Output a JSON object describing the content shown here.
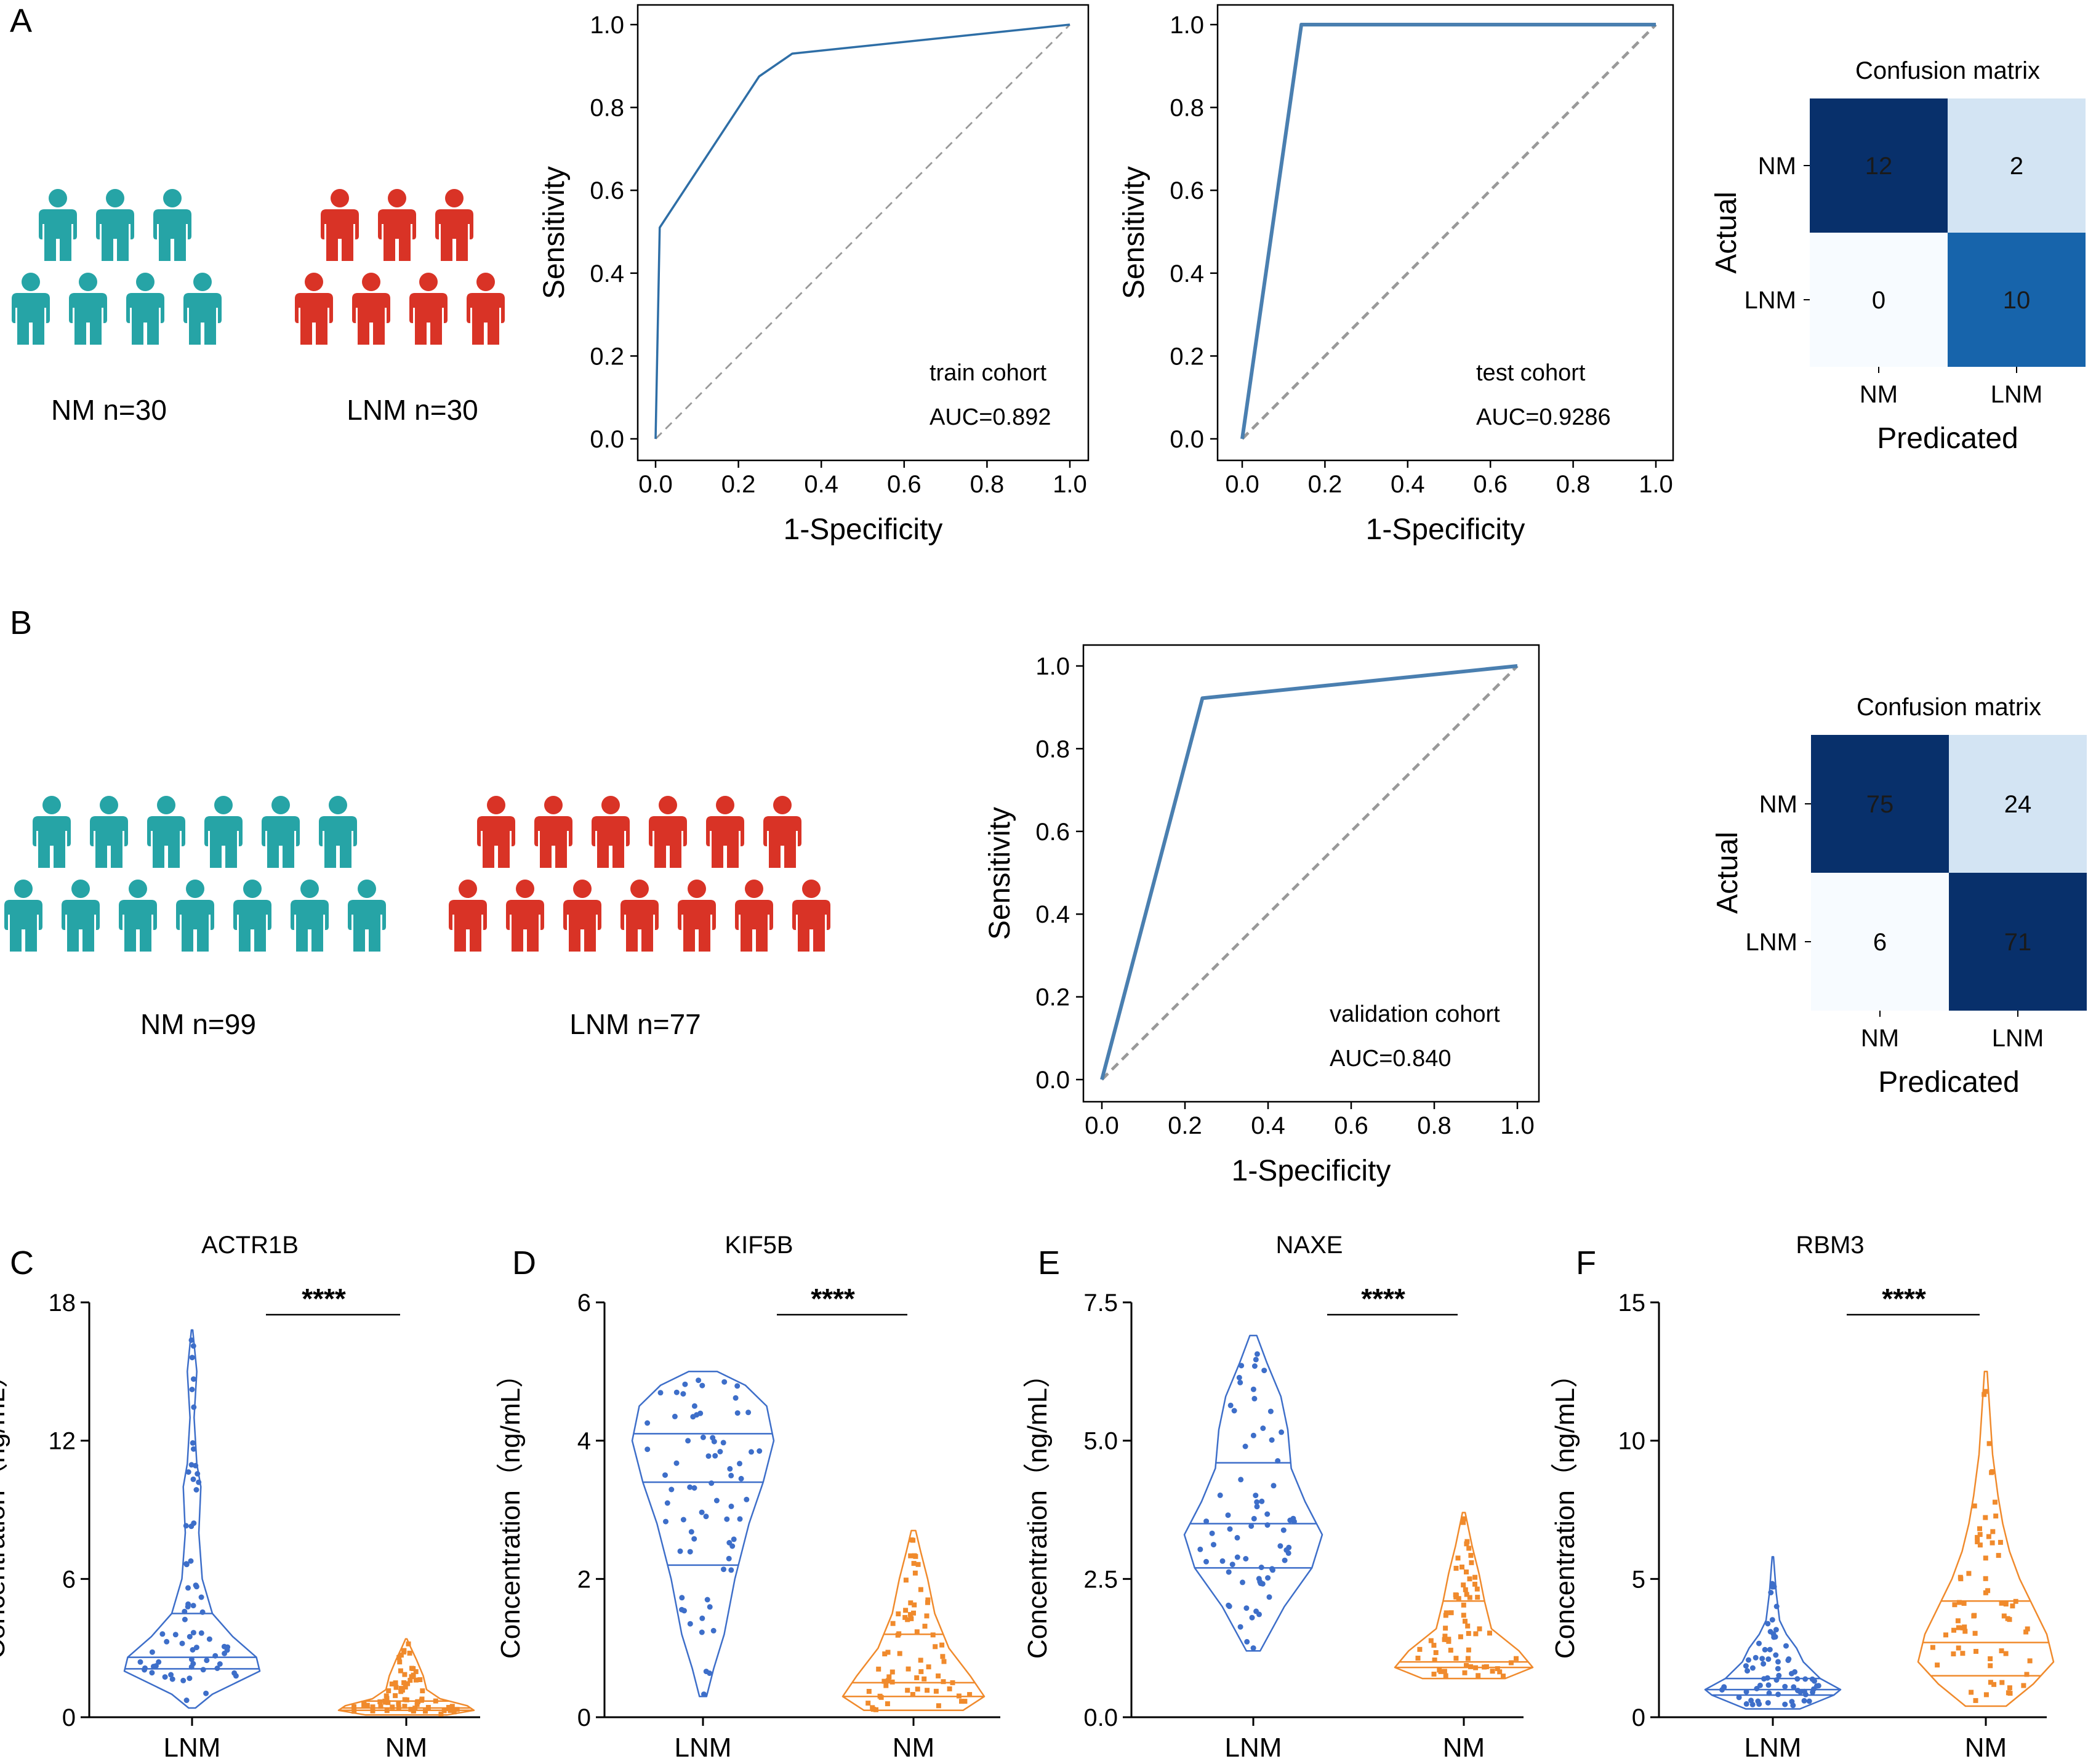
{
  "colors": {
    "teal": "#26a4a6",
    "red": "#d93326",
    "roc_line": "#2e6ea6",
    "roc_line_b": "#4a7fb0",
    "diagonal": "#999999",
    "violin_blue": "#3d6ec9",
    "violin_orange": "#f08a2c",
    "cm_dark": "#08306b",
    "cm_mid": "#1764ab",
    "cm_light": "#d3e4f3",
    "cm_lightest": "#f7fbff"
  },
  "panel_labels": {
    "a": "A",
    "b": "B",
    "c": "C",
    "d": "D",
    "e": "E",
    "f": "F"
  },
  "cohorts": {
    "a": {
      "nm": "NM  n=30",
      "lnm": "LNM  n=30"
    },
    "b": {
      "nm": "NM  n=99",
      "lnm": "LNM  n=77"
    }
  },
  "chart_data": [
    {
      "id": "roc_train",
      "type": "line",
      "title": "",
      "xlabel": "1-Specificity",
      "ylabel": "Sensitivity",
      "xlim": [
        0,
        1
      ],
      "ylim": [
        0,
        1
      ],
      "ticks": [
        "0.0",
        "0.2",
        "0.4",
        "0.6",
        "0.8",
        "1.0"
      ],
      "x": [
        0.0,
        0.01,
        0.25,
        0.33,
        1.0
      ],
      "y": [
        0.0,
        0.51,
        0.875,
        0.93,
        1.0
      ],
      "annotation": [
        "train cohort",
        "AUC=0.892"
      ]
    },
    {
      "id": "roc_test",
      "type": "line",
      "title": "",
      "xlabel": "1-Specificity",
      "ylabel": "Sensitivity",
      "xlim": [
        0,
        1
      ],
      "ylim": [
        0,
        1
      ],
      "ticks": [
        "0.0",
        "0.2",
        "0.4",
        "0.6",
        "0.8",
        "1.0"
      ],
      "x": [
        0.0,
        0.143,
        1.0
      ],
      "y": [
        0.0,
        1.0,
        1.0
      ],
      "annotation": [
        "test cohort",
        "AUC=0.9286"
      ]
    },
    {
      "id": "roc_validation",
      "type": "line",
      "title": "",
      "xlabel": "1-Specificity",
      "ylabel": "Sensitivity",
      "xlim": [
        0,
        1
      ],
      "ylim": [
        0,
        1
      ],
      "ticks": [
        "0.0",
        "0.2",
        "0.4",
        "0.6",
        "0.8",
        "1.0"
      ],
      "x": [
        0.0,
        0.242,
        1.0
      ],
      "y": [
        0.0,
        0.922,
        1.0
      ],
      "annotation": [
        "validation cohort",
        "AUC=0.840"
      ]
    },
    {
      "id": "cm_a",
      "type": "heatmap",
      "title": "Confusion matrix",
      "xlabel": "Predicated",
      "ylabel": "Actual",
      "labels": [
        "NM",
        "LNM"
      ],
      "values": [
        [
          12,
          2
        ],
        [
          0,
          10
        ]
      ]
    },
    {
      "id": "cm_b",
      "type": "heatmap",
      "title": "Confusion matrix",
      "xlabel": "Predicated",
      "ylabel": "Actual",
      "labels": [
        "NM",
        "LNM"
      ],
      "values": [
        [
          75,
          24
        ],
        [
          6,
          71
        ]
      ]
    },
    {
      "id": "violin_actr1b",
      "type": "violin",
      "title": "ACTR1B",
      "ylabel": "Concentration（ng/mL）",
      "categories": [
        "LNM",
        "NM"
      ],
      "ylim": [
        0,
        18
      ],
      "yticks": [
        0,
        6,
        12,
        18
      ],
      "significance": "****",
      "groups": [
        {
          "name": "LNM",
          "min": 0.4,
          "q1": 2.1,
          "median": 2.6,
          "q3": 4.5,
          "max": 16.8,
          "profile": [
            [
              0.4,
              0.05
            ],
            [
              1,
              0.3
            ],
            [
              2,
              1.0
            ],
            [
              2.6,
              0.95
            ],
            [
              3.5,
              0.6
            ],
            [
              4.5,
              0.3
            ],
            [
              6,
              0.15
            ],
            [
              8,
              0.1
            ],
            [
              10,
              0.13
            ],
            [
              11,
              0.07
            ],
            [
              13,
              0.03
            ],
            [
              15,
              0.07
            ],
            [
              16.8,
              0.01
            ]
          ]
        },
        {
          "name": "NM",
          "min": 0.1,
          "q1": 0.3,
          "median": 0.4,
          "q3": 0.7,
          "max": 3.4,
          "profile": [
            [
              0.1,
              0.6
            ],
            [
              0.3,
              1.0
            ],
            [
              0.5,
              0.9
            ],
            [
              0.8,
              0.5
            ],
            [
              1.2,
              0.3
            ],
            [
              1.8,
              0.25
            ],
            [
              2.5,
              0.15
            ],
            [
              3.0,
              0.07
            ],
            [
              3.4,
              0.01
            ]
          ]
        }
      ]
    },
    {
      "id": "violin_kif5b",
      "type": "violin",
      "title": "KIF5B",
      "ylabel": "Concentration（ng/mL）",
      "categories": [
        "LNM",
        "NM"
      ],
      "ylim": [
        0,
        6
      ],
      "yticks": [
        0,
        2,
        4,
        6
      ],
      "significance": "****",
      "groups": [
        {
          "name": "LNM",
          "min": 0.3,
          "q1": 2.2,
          "median": 3.4,
          "q3": 4.1,
          "max": 5.0,
          "profile": [
            [
              0.3,
              0.05
            ],
            [
              0.7,
              0.15
            ],
            [
              1.2,
              0.3
            ],
            [
              2,
              0.45
            ],
            [
              2.8,
              0.65
            ],
            [
              3.4,
              0.85
            ],
            [
              4,
              1.0
            ],
            [
              4.5,
              0.9
            ],
            [
              4.8,
              0.6
            ],
            [
              5.0,
              0.2
            ]
          ]
        },
        {
          "name": "NM",
          "min": 0.1,
          "q1": 0.3,
          "median": 0.5,
          "q3": 1.2,
          "max": 2.7,
          "profile": [
            [
              0.1,
              0.7
            ],
            [
              0.3,
              1.0
            ],
            [
              0.6,
              0.8
            ],
            [
              1.0,
              0.5
            ],
            [
              1.5,
              0.3
            ],
            [
              2.0,
              0.2
            ],
            [
              2.4,
              0.1
            ],
            [
              2.7,
              0.03
            ]
          ]
        }
      ]
    },
    {
      "id": "violin_naxe",
      "type": "violin",
      "title": "NAXE",
      "ylabel": "Concentration（ng/mL）",
      "categories": [
        "LNM",
        "NM"
      ],
      "ylim": [
        0,
        7.5
      ],
      "yticks": [
        0.0,
        2.5,
        5.0,
        7.5
      ],
      "significance": "****",
      "groups": [
        {
          "name": "LNM",
          "min": 1.2,
          "q1": 2.7,
          "median": 3.5,
          "q3": 4.6,
          "max": 6.9,
          "profile": [
            [
              1.2,
              0.1
            ],
            [
              2,
              0.45
            ],
            [
              2.7,
              0.85
            ],
            [
              3.3,
              1.0
            ],
            [
              3.9,
              0.75
            ],
            [
              4.5,
              0.55
            ],
            [
              5.2,
              0.5
            ],
            [
              5.8,
              0.4
            ],
            [
              6.4,
              0.2
            ],
            [
              6.9,
              0.05
            ]
          ]
        },
        {
          "name": "NM",
          "min": 0.7,
          "q1": 0.9,
          "median": 1.0,
          "q3": 2.1,
          "max": 3.7,
          "profile": [
            [
              0.7,
              0.6
            ],
            [
              0.9,
              1.0
            ],
            [
              1.2,
              0.8
            ],
            [
              1.6,
              0.4
            ],
            [
              2.1,
              0.3
            ],
            [
              2.6,
              0.22
            ],
            [
              3.1,
              0.12
            ],
            [
              3.7,
              0.02
            ]
          ]
        }
      ]
    },
    {
      "id": "violin_rbm3",
      "type": "violin",
      "title": "RBM3",
      "ylabel": "Concentration（ng/mL）",
      "categories": [
        "LNM",
        "NM"
      ],
      "ylim": [
        0,
        15
      ],
      "yticks": [
        0,
        5,
        10,
        15
      ],
      "significance": "****",
      "groups": [
        {
          "name": "LNM",
          "min": 0.3,
          "q1": 0.8,
          "median": 1.0,
          "q3": 1.4,
          "max": 5.8,
          "profile": [
            [
              0.3,
              0.4
            ],
            [
              0.8,
              0.9
            ],
            [
              1.0,
              1.0
            ],
            [
              1.4,
              0.7
            ],
            [
              2,
              0.45
            ],
            [
              2.5,
              0.35
            ],
            [
              3,
              0.2
            ],
            [
              3.5,
              0.1
            ],
            [
              4.5,
              0.05
            ],
            [
              5.8,
              0.01
            ]
          ]
        },
        {
          "name": "NM",
          "min": 0.4,
          "q1": 1.5,
          "median": 2.7,
          "q3": 4.2,
          "max": 12.5,
          "profile": [
            [
              0.4,
              0.3
            ],
            [
              1.2,
              0.7
            ],
            [
              2,
              1.0
            ],
            [
              3,
              0.9
            ],
            [
              4,
              0.7
            ],
            [
              5,
              0.5
            ],
            [
              6,
              0.35
            ],
            [
              7,
              0.25
            ],
            [
              8,
              0.18
            ],
            [
              9.5,
              0.1
            ],
            [
              11,
              0.06
            ],
            [
              12.5,
              0.02
            ]
          ]
        }
      ]
    }
  ]
}
